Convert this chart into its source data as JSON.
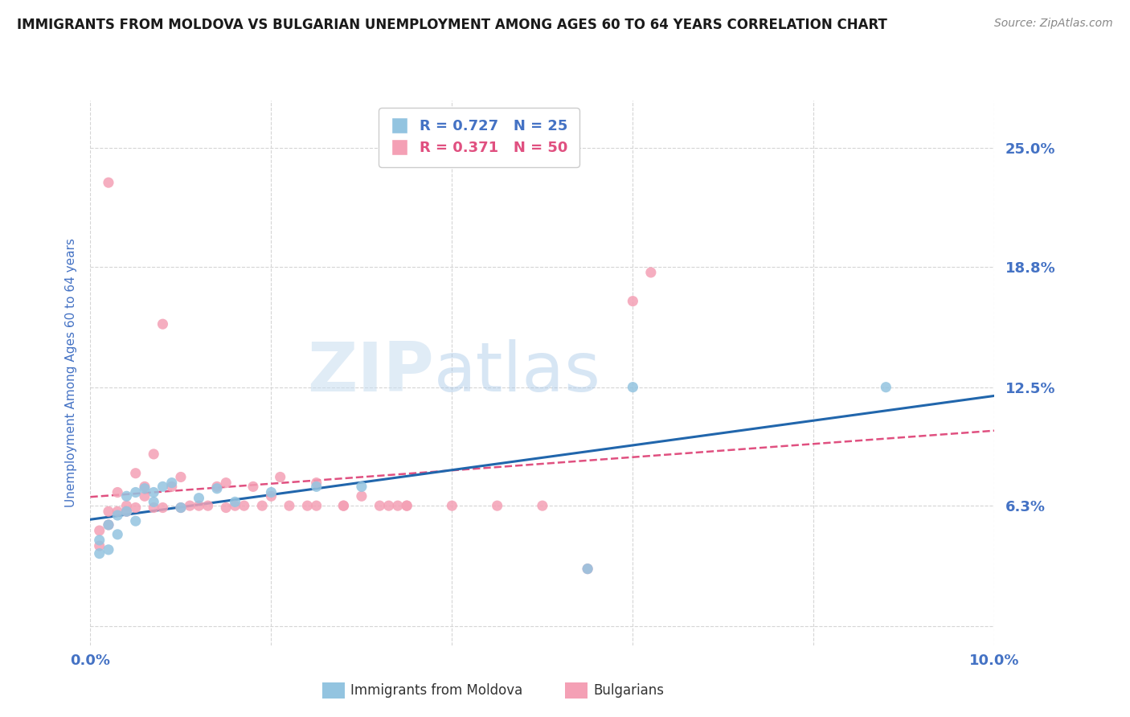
{
  "title": "IMMIGRANTS FROM MOLDOVA VS BULGARIAN UNEMPLOYMENT AMONG AGES 60 TO 64 YEARS CORRELATION CHART",
  "source": "Source: ZipAtlas.com",
  "ylabel": "Unemployment Among Ages 60 to 64 years",
  "xlim": [
    0.0,
    0.1
  ],
  "ylim": [
    -0.01,
    0.275
  ],
  "ytick_positions": [
    0.0,
    0.063,
    0.125,
    0.188,
    0.25
  ],
  "ytick_labels": [
    "",
    "6.3%",
    "12.5%",
    "18.8%",
    "25.0%"
  ],
  "xtick_positions": [
    0.0,
    0.02,
    0.04,
    0.06,
    0.08,
    0.1
  ],
  "xtick_labels": [
    "0.0%",
    "",
    "",
    "",
    "",
    "10.0%"
  ],
  "watermark": "ZIPatlas",
  "series": [
    {
      "name": "Immigrants from Moldova",
      "R": 0.727,
      "N": 25,
      "color": "#93c4e0",
      "trend_color": "#2166ac",
      "trend_style": "solid",
      "x": [
        0.001,
        0.001,
        0.002,
        0.002,
        0.003,
        0.003,
        0.004,
        0.004,
        0.005,
        0.005,
        0.006,
        0.007,
        0.007,
        0.008,
        0.009,
        0.01,
        0.012,
        0.014,
        0.016,
        0.02,
        0.025,
        0.03,
        0.055,
        0.06,
        0.088
      ],
      "y": [
        0.038,
        0.045,
        0.04,
        0.053,
        0.048,
        0.058,
        0.06,
        0.068,
        0.055,
        0.07,
        0.072,
        0.065,
        0.07,
        0.073,
        0.075,
        0.062,
        0.067,
        0.072,
        0.065,
        0.07,
        0.073,
        0.073,
        0.03,
        0.125,
        0.125
      ]
    },
    {
      "name": "Bulgarians",
      "R": 0.371,
      "N": 50,
      "color": "#f4a0b5",
      "trend_color": "#e05080",
      "trend_style": "dashed",
      "x": [
        0.001,
        0.001,
        0.002,
        0.002,
        0.002,
        0.003,
        0.003,
        0.004,
        0.004,
        0.005,
        0.005,
        0.006,
        0.006,
        0.007,
        0.007,
        0.008,
        0.008,
        0.009,
        0.01,
        0.01,
        0.011,
        0.012,
        0.013,
        0.014,
        0.015,
        0.015,
        0.016,
        0.017,
        0.018,
        0.019,
        0.02,
        0.021,
        0.022,
        0.024,
        0.025,
        0.025,
        0.028,
        0.028,
        0.03,
        0.032,
        0.033,
        0.034,
        0.035,
        0.035,
        0.04,
        0.045,
        0.05,
        0.055,
        0.06,
        0.062
      ],
      "y": [
        0.042,
        0.05,
        0.053,
        0.06,
        0.232,
        0.06,
        0.07,
        0.063,
        0.06,
        0.062,
        0.08,
        0.073,
        0.068,
        0.09,
        0.062,
        0.158,
        0.062,
        0.073,
        0.078,
        0.062,
        0.063,
        0.063,
        0.063,
        0.073,
        0.062,
        0.075,
        0.063,
        0.063,
        0.073,
        0.063,
        0.068,
        0.078,
        0.063,
        0.063,
        0.063,
        0.075,
        0.063,
        0.063,
        0.068,
        0.063,
        0.063,
        0.063,
        0.063,
        0.063,
        0.063,
        0.063,
        0.063,
        0.03,
        0.17,
        0.185
      ]
    }
  ],
  "background_color": "#ffffff",
  "title_color": "#1a1a1a",
  "axis_label_color": "#4472c4",
  "tick_color": "#4472c4",
  "grid_color": "#d5d5d5"
}
